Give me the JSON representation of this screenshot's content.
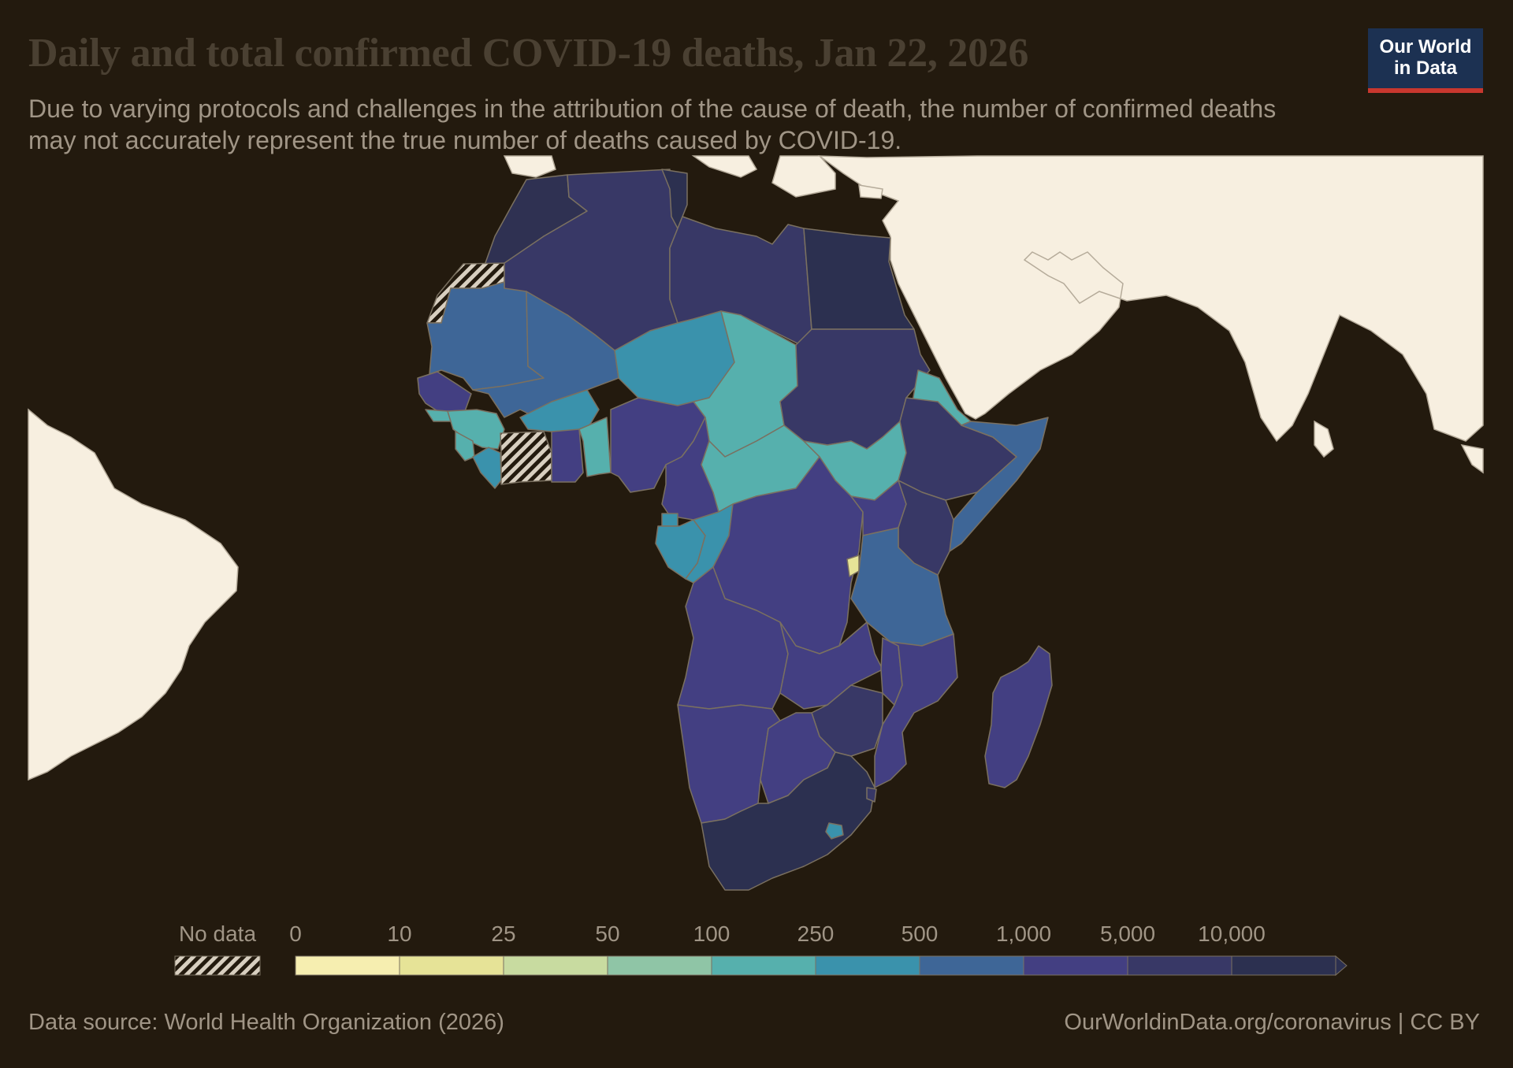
{
  "header": {
    "title": "Daily and total confirmed COVID-19 deaths, Jan 22, 2026",
    "subtitle": "Due to varying protocols and challenges in the attribution of the cause of death, the number of confirmed deaths may not accurately represent the true number of deaths caused by COVID-19.",
    "logo_line1": "Our World",
    "logo_line2": "in Data"
  },
  "legend": {
    "no_data_label": "No data",
    "bins": [
      {
        "label": "0",
        "color": "#f6eeb0"
      },
      {
        "label": "10",
        "color": "#e6e397"
      },
      {
        "label": "25",
        "color": "#c8dba0"
      },
      {
        "label": "50",
        "color": "#8fc5a6"
      },
      {
        "label": "100",
        "color": "#56b0ad"
      },
      {
        "label": "250",
        "color": "#3a92ac"
      },
      {
        "label": "500",
        "color": "#3e6697"
      },
      {
        "label": "1,000",
        "color": "#433f82"
      },
      {
        "label": "5,000",
        "color": "#383866"
      },
      {
        "label": "10,000",
        "color": "#2c3050"
      }
    ]
  },
  "colors": {
    "background": "#231a0e",
    "other_land": "#f7efe0",
    "border": "#7a7060",
    "no_data_hatch": "#d8cfc0"
  },
  "footer": {
    "source": "Data source: World Health Organization (2026)",
    "link": "OurWorldinData.org/coronavirus | CC BY"
  }
}
